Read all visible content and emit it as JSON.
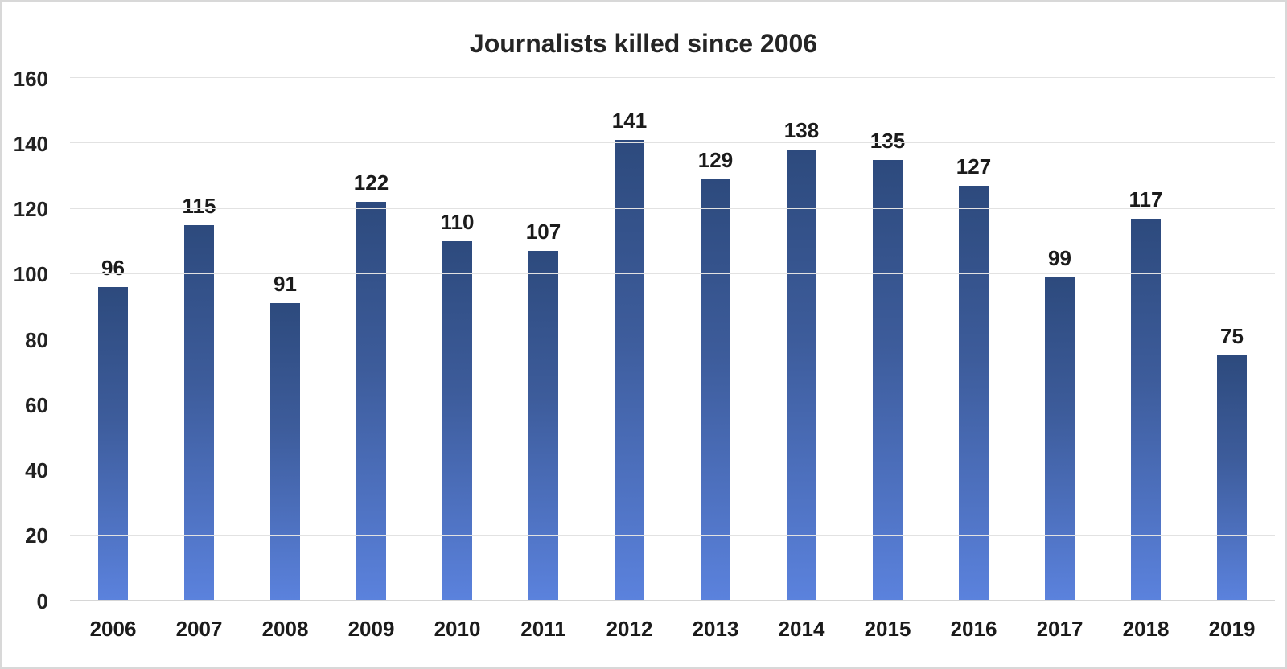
{
  "page": {
    "background_color": "#ffffff",
    "frame_border_color": "#d8d8d8"
  },
  "chart_data": {
    "type": "bar",
    "title": "Journalists killed since 2006",
    "categories": [
      "2006",
      "2007",
      "2008",
      "2009",
      "2010",
      "2011",
      "2012",
      "2013",
      "2014",
      "2015",
      "2016",
      "2017",
      "2018",
      "2019"
    ],
    "values": [
      96,
      115,
      91,
      122,
      110,
      107,
      141,
      129,
      138,
      135,
      127,
      99,
      117,
      75
    ],
    "xlabel": "",
    "ylabel": "",
    "ylim": [
      0,
      160
    ],
    "yticks": [
      0,
      20,
      40,
      60,
      80,
      100,
      120,
      140,
      160
    ],
    "grid": "horizontal",
    "legend_position": "none",
    "data_labels": "above-bars",
    "colors": {
      "bar_gradient_top": "#2d4a7d",
      "bar_gradient_bottom": "#5b82dd",
      "gridline": "#e2e2e2",
      "axis_text": "#222222",
      "title_text": "#252525",
      "data_label_text": "#1b1b1b"
    }
  }
}
